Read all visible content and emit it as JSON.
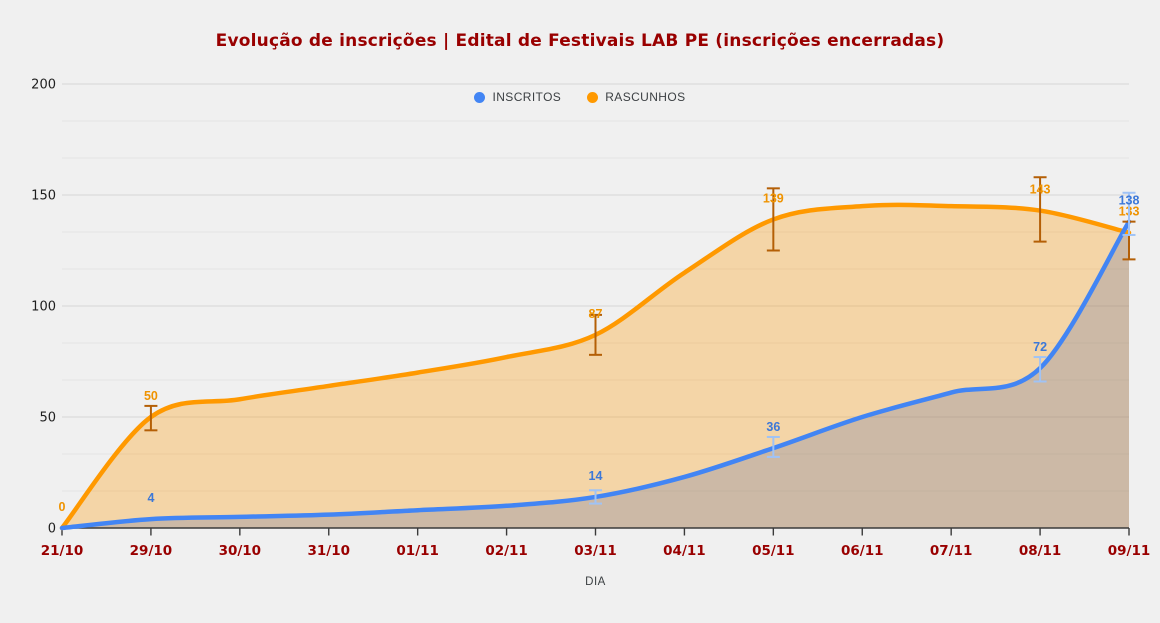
{
  "chart_data": {
    "type": "area",
    "title": "Evolução de inscrições | Edital de Festivais LAB PE (inscrições encerradas)",
    "xlabel": "DIA",
    "categories": [
      "21/10",
      "29/10",
      "30/10",
      "31/10",
      "01/11",
      "02/11",
      "03/11",
      "04/11",
      "05/11",
      "06/11",
      "07/11",
      "08/11",
      "09/11"
    ],
    "yticks": [
      0,
      50,
      100,
      150,
      200
    ],
    "ylim": [
      0,
      200
    ],
    "grid": "major lines at 50s with 2 minor lines per interval, horizontal only",
    "legend_position": "top-center-inside",
    "colors": {
      "title": "#990000",
      "x_tick_label": "#990000",
      "y_tick_label": "#1f1f1f",
      "x_axis_title": "#3c4043",
      "axis_line": "#3a3a3a",
      "grid_major": "#d6d6d6",
      "grid_minor": "#e3e3e3",
      "background": "#f0f0f0"
    },
    "series": [
      {
        "name": "INSCRITOS",
        "color": "#4285f4",
        "fill": "rgba(88,106,168,0.26)",
        "label_color": "#3c78d8",
        "errorbar_color": "#a0c3f5",
        "values": [
          0,
          4,
          5,
          6,
          8,
          10,
          14,
          23,
          36,
          50,
          61,
          72,
          138
        ],
        "annotations": [
          {
            "i": 1,
            "label": "4"
          },
          {
            "i": 6,
            "label": "14",
            "err": [
              11,
              17
            ]
          },
          {
            "i": 8,
            "label": "36",
            "err": [
              32,
              41
            ]
          },
          {
            "i": 11,
            "label": "72",
            "err": [
              66,
              77
            ]
          },
          {
            "i": 12,
            "label": "138",
            "err": [
              132,
              151
            ]
          }
        ]
      },
      {
        "name": "RASCUNHOS",
        "color": "#ff9900",
        "fill": "rgba(255,153,0,0.30)",
        "label_color": "#ef9300",
        "errorbar_color": "#b45f06",
        "values": [
          0,
          50,
          58,
          64,
          70,
          77,
          87,
          115,
          139,
          145,
          145,
          143,
          133
        ],
        "annotations": [
          {
            "i": 0,
            "label": "0"
          },
          {
            "i": 1,
            "label": "50",
            "err": [
              44,
              55
            ]
          },
          {
            "i": 6,
            "label": "87",
            "err": [
              78,
              96
            ]
          },
          {
            "i": 8,
            "label": "139",
            "err": [
              125,
              153
            ]
          },
          {
            "i": 11,
            "label": "143",
            "err": [
              129,
              158
            ]
          },
          {
            "i": 12,
            "label": "133",
            "err": [
              121,
              138
            ]
          }
        ]
      }
    ]
  }
}
